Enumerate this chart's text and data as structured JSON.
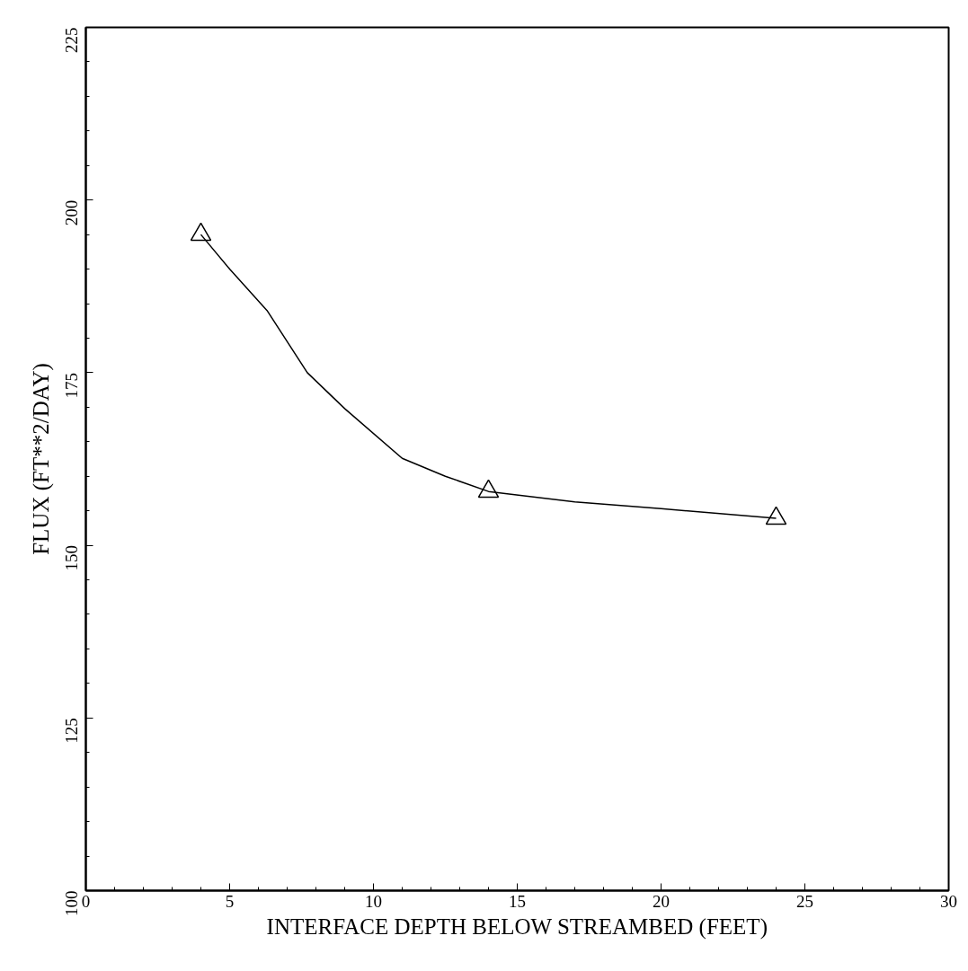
{
  "chart_data": {
    "type": "line",
    "xlabel": "INTERFACE DEPTH BELOW STREAMBED (FEET)",
    "ylabel": "FLUX (FT**2/DAY)",
    "xlim": [
      0,
      30
    ],
    "ylim": [
      100,
      225
    ],
    "xticks": [
      0,
      5,
      10,
      15,
      20,
      25,
      30
    ],
    "yticks": [
      100,
      125,
      150,
      175,
      200,
      225
    ],
    "grid": false,
    "series": [
      {
        "color": "#000000",
        "marker": "none",
        "line_style": "solid",
        "x": [
          4,
          5,
          6.3,
          7.7,
          9,
          11,
          12.5,
          14,
          17,
          20,
          24
        ],
        "values": [
          195,
          190,
          184,
          175,
          169.8,
          162.6,
          160,
          157.8,
          156.3,
          155.3,
          153.9
        ]
      },
      {
        "type": "scatter",
        "color": "#000000",
        "marker": "triangle",
        "x": [
          4,
          14,
          24
        ],
        "values": [
          195,
          157.8,
          153.9
        ]
      }
    ]
  }
}
